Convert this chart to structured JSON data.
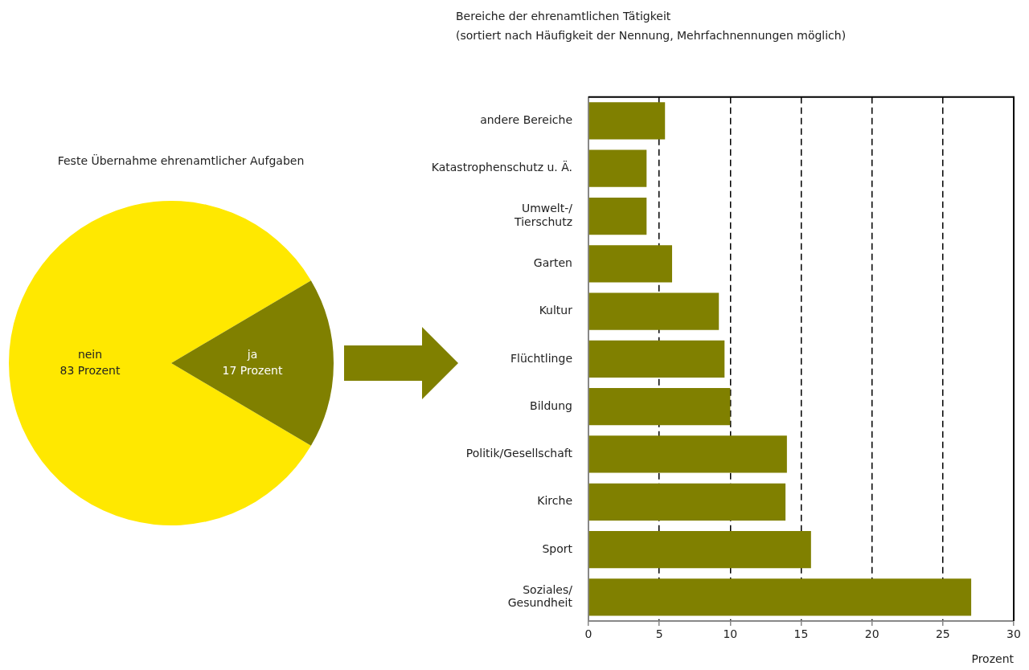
{
  "chart_data": [
    {
      "type": "pie",
      "title": "Feste Übernahme ehrenamtlicher Aufgaben",
      "categories": [
        "nein",
        "ja"
      ],
      "values": [
        83,
        17
      ],
      "colors": [
        "#ffe800",
        "#808000"
      ],
      "value_labels": [
        "83 Prozent",
        "17 Prozent"
      ],
      "legend": false
    },
    {
      "type": "bar",
      "orientation": "horizontal",
      "title": "Bereiche der ehrenamtlichen Tätigkeit",
      "subtitle": "(sortiert nach Häufigkeit der Nennung, Mehrfachnennungen möglich)",
      "xlabel": "Prozent",
      "categories": [
        "andere Bereiche",
        "Katastrophenschutz u. Ä.",
        "Umwelt-/ Tierschutz",
        "Garten",
        "Kultur",
        "Flüchtlinge",
        "Bildung",
        "Politik/Gesellschaft",
        "Kirche",
        "Sport",
        "Soziales/ Gesundheit"
      ],
      "values": [
        5.4,
        4.1,
        4.1,
        5.9,
        9.2,
        9.6,
        10.0,
        14.0,
        13.9,
        15.7,
        27.0
      ],
      "color": "#808000",
      "xlim": [
        0,
        30
      ],
      "xticks": [
        0,
        5,
        10,
        15,
        20,
        25,
        30
      ],
      "grid": "x",
      "line_style": "dashed",
      "legend": false
    }
  ]
}
